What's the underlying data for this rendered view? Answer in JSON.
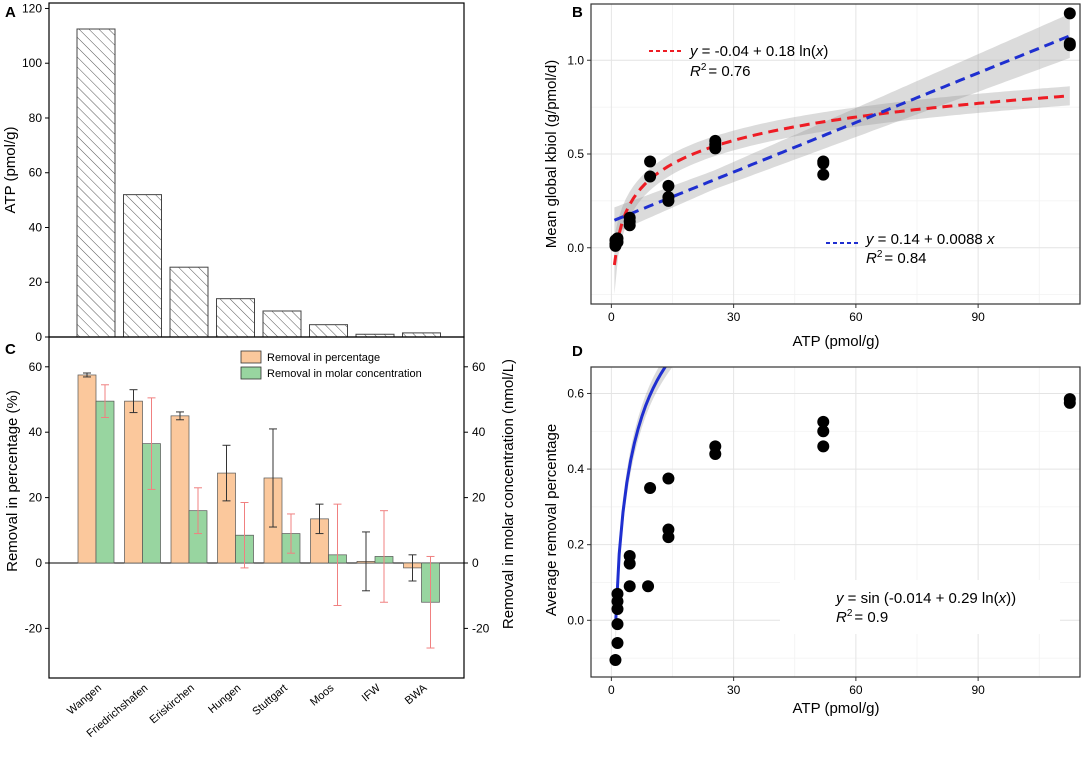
{
  "panel_labels": {
    "a": "A",
    "b": "B",
    "c": "C",
    "d": "D"
  },
  "chart_data": [
    {
      "id": "A",
      "type": "bar",
      "ylabel": "ATP (pmol/g)",
      "ylim": [
        0,
        122
      ],
      "yticks": [
        0,
        20,
        40,
        60,
        80,
        100,
        120
      ],
      "categories": [
        "Wangen",
        "Friedrichshafen",
        "Eriskirchen",
        "Hungen",
        "Stuttgart",
        "Moos",
        "IFW",
        "BWA"
      ],
      "values": [
        112.5,
        52,
        25.5,
        14,
        9.5,
        4.5,
        1,
        1.5
      ],
      "pattern": "hatched"
    },
    {
      "id": "C",
      "type": "bar",
      "ylabel": "Removal in percentage (%)",
      "ylabel_right": "Removal in molar concentration (nmol/L)",
      "ylim": [
        -33,
        64
      ],
      "yticks": [
        -20,
        0,
        20,
        40,
        60
      ],
      "categories": [
        "Wangen",
        "Friedrichshafen",
        "Eriskirchen",
        "Hungen",
        "Stuttgart",
        "Moos",
        "IFW",
        "BWA"
      ],
      "legend": [
        "Removal in percentage",
        "Removal in molar concentration"
      ],
      "legend_position": "top-right",
      "series": [
        {
          "name": "Removal in percentage",
          "color": "#fbc89c",
          "err_color": "#333333",
          "values": [
            57.5,
            49.5,
            45,
            27.5,
            26,
            13.5,
            0.5,
            -1.5
          ],
          "err": [
            0.6,
            3.5,
            1.2,
            8.5,
            15,
            4.5,
            9,
            4
          ]
        },
        {
          "name": "Removal in molar concentration",
          "color": "#98d5a0",
          "err_color": "#f08080",
          "values": [
            49.5,
            36.5,
            16,
            8.5,
            9,
            2.5,
            2,
            -12
          ],
          "err": [
            5,
            14,
            7,
            10,
            6,
            15.5,
            14,
            14
          ]
        }
      ]
    },
    {
      "id": "B",
      "type": "scatter",
      "xlabel": "ATP (pmol/g)",
      "ylabel": "Mean global kbiol (g/pmol/d)",
      "xlim": [
        -5,
        115
      ],
      "ylim": [
        -0.3,
        1.3
      ],
      "xticks": [
        0,
        30,
        60,
        90
      ],
      "yticks": [
        0.0,
        0.5,
        1.0
      ],
      "ytick_labels": [
        "0.0",
        "0.5",
        "1.0"
      ],
      "points": [
        [
          112.5,
          1.25
        ],
        [
          112.5,
          1.09
        ],
        [
          112.5,
          1.08
        ],
        [
          52,
          0.46
        ],
        [
          52,
          0.45
        ],
        [
          52,
          0.39
        ],
        [
          25.5,
          0.57
        ],
        [
          25.5,
          0.55
        ],
        [
          25.5,
          0.53
        ],
        [
          14,
          0.33
        ],
        [
          14,
          0.27
        ],
        [
          14,
          0.25
        ],
        [
          9.5,
          0.46
        ],
        [
          9.5,
          0.38
        ],
        [
          4.5,
          0.16
        ],
        [
          4.5,
          0.14
        ],
        [
          4.5,
          0.12
        ],
        [
          1.5,
          0.05
        ],
        [
          1.5,
          0.03
        ],
        [
          1,
          0.04
        ],
        [
          1,
          0.02
        ],
        [
          1,
          0.01
        ]
      ],
      "fits": [
        {
          "color": "#ee1c24",
          "eq_prefix": "y",
          "eq_body": " = -0.04 + 0.18 ln(",
          "eq_x": "x",
          "eq_suffix": ")",
          "r2_label": "R",
          "r2_exp": "2",
          "r2_value": "= 0.76",
          "model": "log",
          "a": -0.04,
          "b": 0.18
        },
        {
          "color": "#1f2fd0",
          "eq_prefix": "y",
          "eq_body": " = 0.14 + 0.0088 ",
          "eq_x": "x",
          "eq_suffix": "",
          "r2_label": "R",
          "r2_exp": "2",
          "r2_value": "= 0.84",
          "model": "linear",
          "a": 0.14,
          "b": 0.0088
        }
      ]
    },
    {
      "id": "D",
      "type": "scatter",
      "xlabel": "ATP (pmol/g)",
      "ylabel": "Average removal percentage",
      "xlim": [
        -5,
        115
      ],
      "ylim": [
        -0.15,
        0.67
      ],
      "xticks": [
        0,
        30,
        60,
        90
      ],
      "yticks": [
        0.0,
        0.2,
        0.4,
        0.6
      ],
      "ytick_labels": [
        "0.0",
        "0.2",
        "0.4",
        "0.6"
      ],
      "points": [
        [
          112.5,
          0.585
        ],
        [
          112.5,
          0.575
        ],
        [
          52,
          0.525
        ],
        [
          52,
          0.5
        ],
        [
          52,
          0.46
        ],
        [
          25.5,
          0.46
        ],
        [
          25.5,
          0.44
        ],
        [
          14,
          0.375
        ],
        [
          14,
          0.24
        ],
        [
          14,
          0.22
        ],
        [
          9.5,
          0.35
        ],
        [
          9,
          0.09
        ],
        [
          4.5,
          0.17
        ],
        [
          4.5,
          0.15
        ],
        [
          4.5,
          0.09
        ],
        [
          1.5,
          0.07
        ],
        [
          1.5,
          0.05
        ],
        [
          1.5,
          0.03
        ],
        [
          1.5,
          -0.01
        ],
        [
          1.5,
          -0.06
        ],
        [
          1,
          -0.105
        ]
      ],
      "fits": [
        {
          "color": "#1f2fd0",
          "eq_prefix": "y",
          "eq_body": " = sin (-0.014 + 0.29 ln(",
          "eq_x": "x",
          "eq_suffix": "))",
          "r2_label": "R",
          "r2_exp": "2",
          "r2_value": "= 0.9",
          "model": "sinlog",
          "a": -0.014,
          "b": 0.29
        }
      ]
    }
  ]
}
